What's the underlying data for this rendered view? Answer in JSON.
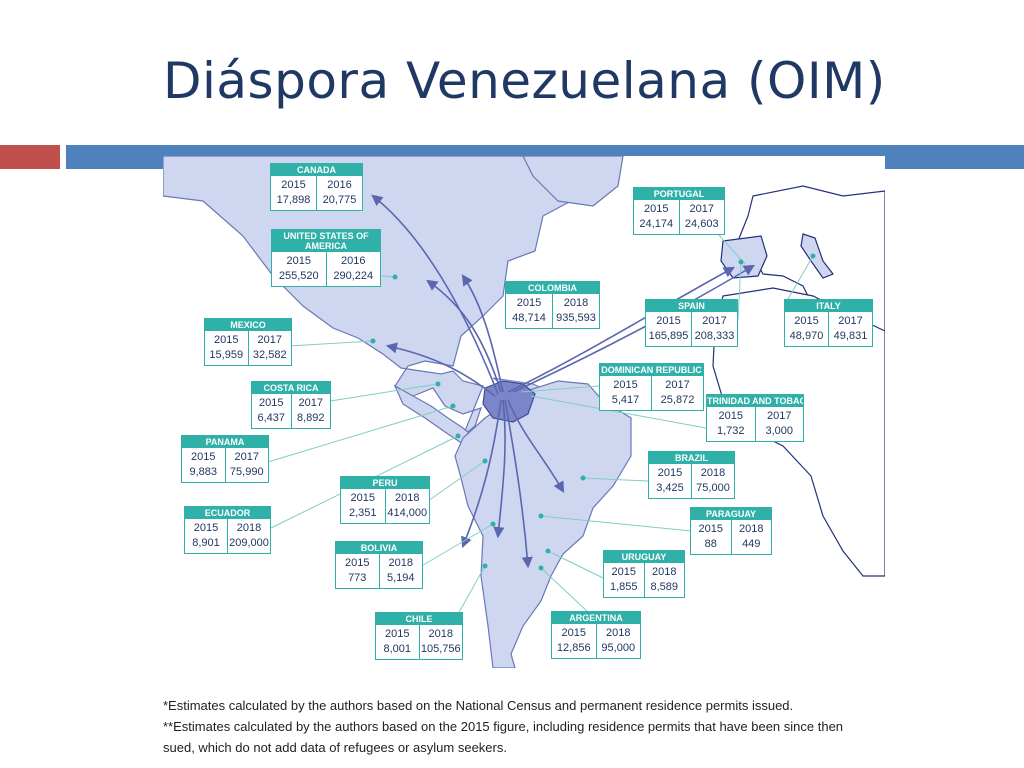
{
  "slide": {
    "title": "Diáspora Venezuelana (OIM)"
  },
  "colors": {
    "title": "#1f3864",
    "accent_red": "#c0504d",
    "accent_blue": "#4f81bd",
    "card_teal": "#2fb0a8",
    "land_fill": "#cfd6f0",
    "venezuela": "#7b86c8"
  },
  "map": {
    "origin": "Venezuela",
    "cards": [
      {
        "country": "CANADA",
        "year_a": "2015",
        "value_a": "17,898",
        "year_b": "2016",
        "value_b": "20,775"
      },
      {
        "country": "UNITED STATES OF AMERICA",
        "year_a": "2015",
        "value_a": "255,520",
        "year_b": "2016",
        "value_b": "290,224"
      },
      {
        "country": "MEXICO",
        "year_a": "2015",
        "value_a": "15,959",
        "year_b": "2017",
        "value_b": "32,582"
      },
      {
        "country": "COSTA RICA",
        "year_a": "2015",
        "value_a": "6,437",
        "year_b": "2017",
        "value_b": "8,892"
      },
      {
        "country": "PANAMA",
        "year_a": "2015",
        "value_a": "9,883",
        "year_b": "2017",
        "value_b": "75,990"
      },
      {
        "country": "ECUADOR",
        "year_a": "2015",
        "value_a": "8,901",
        "year_b": "2018",
        "value_b": "209,000"
      },
      {
        "country": "PERU",
        "year_a": "2015",
        "value_a": "2,351",
        "year_b": "2018",
        "value_b": "414,000"
      },
      {
        "country": "BOLIVIA",
        "year_a": "2015",
        "value_a": "773",
        "year_b": "2018",
        "value_b": "5,194"
      },
      {
        "country": "CHILE",
        "year_a": "2015",
        "value_a": "8,001",
        "year_b": "2018",
        "value_b": "105,756"
      },
      {
        "country": "ARGENTINA",
        "year_a": "2015",
        "value_a": "12,856",
        "year_b": "2018",
        "value_b": "95,000"
      },
      {
        "country": "URUGUAY",
        "year_a": "2015",
        "value_a": "1,855",
        "year_b": "2018",
        "value_b": "8,589"
      },
      {
        "country": "PARAGUAY",
        "year_a": "2015",
        "value_a": "88",
        "year_b": "2018",
        "value_b": "449"
      },
      {
        "country": "BRAZIL",
        "year_a": "2015",
        "value_a": "3,425",
        "year_b": "2018",
        "value_b": "75,000"
      },
      {
        "country": "COLOMBIA",
        "year_a": "2015",
        "value_a": "48,714",
        "year_b": "2018",
        "value_b": "935,593"
      },
      {
        "country": "DOMINICAN REPUBLIC",
        "year_a": "2015",
        "value_a": "5,417",
        "year_b": "2017",
        "value_b": "25,872"
      },
      {
        "country": "TRINIDAD AND TOBAGO",
        "year_a": "2015",
        "value_a": "1,732",
        "year_b": "2017",
        "value_b": "3,000"
      },
      {
        "country": "SPAIN",
        "year_a": "2015",
        "value_a": "165,895",
        "year_b": "2017",
        "value_b": "208,333"
      },
      {
        "country": "PORTUGAL",
        "year_a": "2015",
        "value_a": "24,174",
        "year_b": "2017",
        "value_b": "24,603"
      },
      {
        "country": "ITALY",
        "year_a": "2015",
        "value_a": "48,970",
        "year_b": "2017",
        "value_b": "49,831"
      }
    ]
  },
  "footnotes": [
    "*Estimates calculated by the authors based on the National Census and permanent residence permits issued.",
    "**Estimates calculated by the authors based on the 2015 figure, including residence permits that have been since then",
    "sued, which do not add data of refugees or asylum seekers."
  ]
}
